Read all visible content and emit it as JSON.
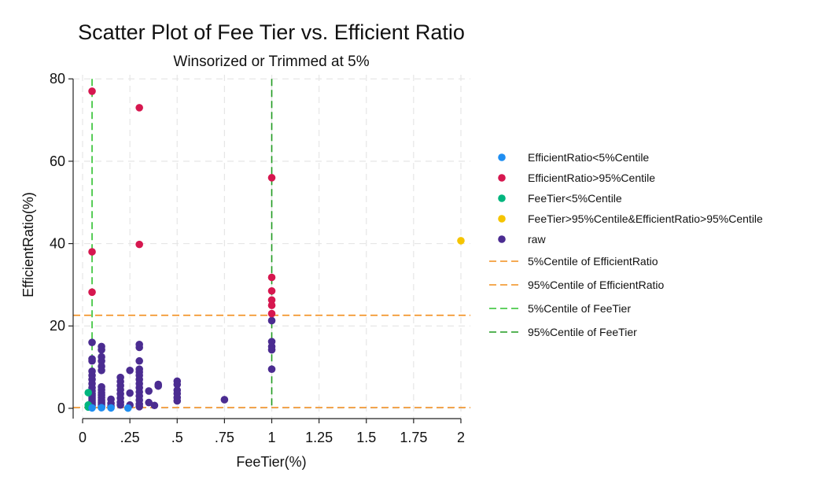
{
  "chart_data": {
    "type": "scatter",
    "title": "Scatter Plot of Fee Tier vs. Efficient Ratio",
    "subtitle": "Winsorized or Trimmed at 5%",
    "xlabel": "FeeTier(%)",
    "ylabel": "EfficientRatio(%)",
    "xlim": [
      -0.05,
      2.05
    ],
    "ylim": [
      -2.5,
      81
    ],
    "grid": true,
    "legend_placement": "right",
    "x_ticks": [
      {
        "value": 0,
        "label": "0"
      },
      {
        "value": 0.25,
        "label": ".25"
      },
      {
        "value": 0.5,
        "label": ".5"
      },
      {
        "value": 0.75,
        "label": ".75"
      },
      {
        "value": 1,
        "label": "1"
      },
      {
        "value": 1.25,
        "label": "1.25"
      },
      {
        "value": 1.5,
        "label": "1.5"
      },
      {
        "value": 1.75,
        "label": "1.75"
      },
      {
        "value": 2,
        "label": "2"
      }
    ],
    "y_ticks": [
      {
        "value": 0,
        "label": "0"
      },
      {
        "value": 20,
        "label": "20"
      },
      {
        "value": 40,
        "label": "40"
      },
      {
        "value": 60,
        "label": "60"
      },
      {
        "value": 80,
        "label": "80"
      }
    ],
    "series": [
      {
        "name": "EfficientRatio<5%Centile",
        "color": "#1f8ef1",
        "points": [
          [
            0.05,
            0.1
          ],
          [
            0.1,
            0.15
          ],
          [
            0.15,
            0.1
          ],
          [
            0.24,
            0.05
          ]
        ]
      },
      {
        "name": "EfficientRatio>95%Centile",
        "color": "#d6174f",
        "points": [
          [
            0.05,
            77
          ],
          [
            0.3,
            73
          ],
          [
            0.05,
            38
          ],
          [
            0.3,
            39.8
          ],
          [
            0.05,
            28.2
          ],
          [
            1,
            56
          ],
          [
            1,
            31.8
          ],
          [
            1,
            28.5
          ],
          [
            1,
            26.3
          ],
          [
            1,
            25
          ],
          [
            1,
            23
          ]
        ]
      },
      {
        "name": "FeeTier<5%Centile",
        "color": "#00b57e",
        "points": [
          [
            0.03,
            3.8
          ],
          [
            0.03,
            0.8
          ],
          [
            0.03,
            0.3
          ]
        ]
      },
      {
        "name": "FeeTier>95%Centile&EfficientRatio>95%Centile",
        "color": "#f5c400",
        "points": [
          [
            2,
            40.7
          ]
        ]
      },
      {
        "name": "raw",
        "color": "#4b2c91",
        "points": [
          [
            0.05,
            16
          ],
          [
            0.05,
            12
          ],
          [
            0.05,
            11.5
          ],
          [
            0.05,
            9
          ],
          [
            0.05,
            8
          ],
          [
            0.05,
            7
          ],
          [
            0.05,
            6
          ],
          [
            0.05,
            5
          ],
          [
            0.05,
            4.2
          ],
          [
            0.05,
            3.5
          ],
          [
            0.05,
            3
          ],
          [
            0.05,
            2.5
          ],
          [
            0.05,
            2
          ],
          [
            0.05,
            1.5
          ],
          [
            0.05,
            1
          ],
          [
            0.05,
            0.6
          ],
          [
            0.1,
            15
          ],
          [
            0.1,
            14.2
          ],
          [
            0.1,
            12.5
          ],
          [
            0.1,
            11.5
          ],
          [
            0.1,
            10.2
          ],
          [
            0.1,
            9.2
          ],
          [
            0.1,
            5.2
          ],
          [
            0.1,
            4.5
          ],
          [
            0.1,
            3.8
          ],
          [
            0.1,
            3.2
          ],
          [
            0.1,
            2.6
          ],
          [
            0.1,
            2
          ],
          [
            0.1,
            1.5
          ],
          [
            0.1,
            1
          ],
          [
            0.1,
            0.5
          ],
          [
            0.1,
            0.2
          ],
          [
            0.15,
            2.2
          ],
          [
            0.15,
            1.2
          ],
          [
            0.15,
            0.5
          ],
          [
            0.2,
            7.5
          ],
          [
            0.2,
            6.5
          ],
          [
            0.2,
            5.5
          ],
          [
            0.2,
            4.5
          ],
          [
            0.2,
            3.5
          ],
          [
            0.2,
            2.5
          ],
          [
            0.2,
            1.5
          ],
          [
            0.2,
            0.8
          ],
          [
            0.25,
            9.2
          ],
          [
            0.25,
            3.7
          ],
          [
            0.25,
            0.8
          ],
          [
            0.3,
            15.5
          ],
          [
            0.3,
            14.8
          ],
          [
            0.3,
            11.5
          ],
          [
            0.3,
            9.5
          ],
          [
            0.3,
            8.8
          ],
          [
            0.3,
            8
          ],
          [
            0.3,
            7
          ],
          [
            0.3,
            6
          ],
          [
            0.3,
            5
          ],
          [
            0.3,
            4
          ],
          [
            0.3,
            3
          ],
          [
            0.3,
            2
          ],
          [
            0.3,
            1
          ],
          [
            0.3,
            0.4
          ],
          [
            0.35,
            4.2
          ],
          [
            0.35,
            1.4
          ],
          [
            0.38,
            0.7
          ],
          [
            0.4,
            5.8
          ],
          [
            0.4,
            5.4
          ],
          [
            0.5,
            6.6
          ],
          [
            0.5,
            5.8
          ],
          [
            0.5,
            4.4
          ],
          [
            0.5,
            3.6
          ],
          [
            0.5,
            2.6
          ],
          [
            0.5,
            1.8
          ],
          [
            0.75,
            2.1
          ],
          [
            1,
            21.3
          ],
          [
            1,
            16.2
          ],
          [
            1,
            15
          ],
          [
            1,
            14.2
          ],
          [
            1,
            9.5
          ]
        ]
      }
    ],
    "reference_lines": [
      {
        "name": "5%Centile of EfficientRatio",
        "orientation": "horizontal",
        "value": 0.2,
        "color": "#f28e1c"
      },
      {
        "name": "95%Centile of EfficientRatio",
        "orientation": "horizontal",
        "value": 22.6,
        "color": "#f28e1c"
      },
      {
        "name": "5%Centile of FeeTier",
        "orientation": "vertical",
        "value": 0.05,
        "color": "#2fc02f"
      },
      {
        "name": "95%Centile of FeeTier",
        "orientation": "vertical",
        "value": 1,
        "color": "#1f9a1f"
      }
    ]
  }
}
